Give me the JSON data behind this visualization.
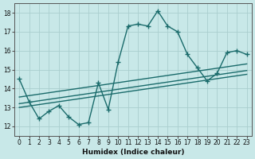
{
  "title": "",
  "xlabel": "Humidex (Indice chaleur)",
  "xlim": [
    -0.5,
    23.5
  ],
  "ylim": [
    11.5,
    18.5
  ],
  "xticks": [
    0,
    1,
    2,
    3,
    4,
    5,
    6,
    7,
    8,
    9,
    10,
    11,
    12,
    13,
    14,
    15,
    16,
    17,
    18,
    19,
    20,
    21,
    22,
    23
  ],
  "yticks": [
    12,
    13,
    14,
    15,
    16,
    17,
    18
  ],
  "bg_color": "#c8e8e8",
  "grid_color": "#aacece",
  "line_color": "#1a6b6b",
  "series1_x": [
    0,
    1,
    2,
    3,
    4,
    5,
    6,
    7,
    8,
    9,
    10,
    11,
    12,
    13,
    14,
    15,
    16,
    17,
    18,
    19,
    20,
    21,
    22,
    23
  ],
  "series1_y": [
    14.5,
    13.3,
    12.4,
    12.8,
    13.1,
    12.5,
    12.1,
    12.2,
    14.3,
    12.9,
    15.4,
    17.3,
    17.4,
    17.3,
    18.1,
    17.3,
    17.0,
    15.8,
    15.1,
    14.4,
    14.8,
    15.9,
    16.0,
    15.8
  ],
  "series2_x": [
    0,
    23
  ],
  "series2_y": [
    13.55,
    15.3
  ],
  "series3_x": [
    0,
    23
  ],
  "series3_y": [
    13.2,
    14.95
  ],
  "series4_x": [
    0,
    23
  ],
  "series4_y": [
    13.0,
    14.75
  ],
  "marker": "+",
  "markersize": 4,
  "linewidth": 1.0
}
